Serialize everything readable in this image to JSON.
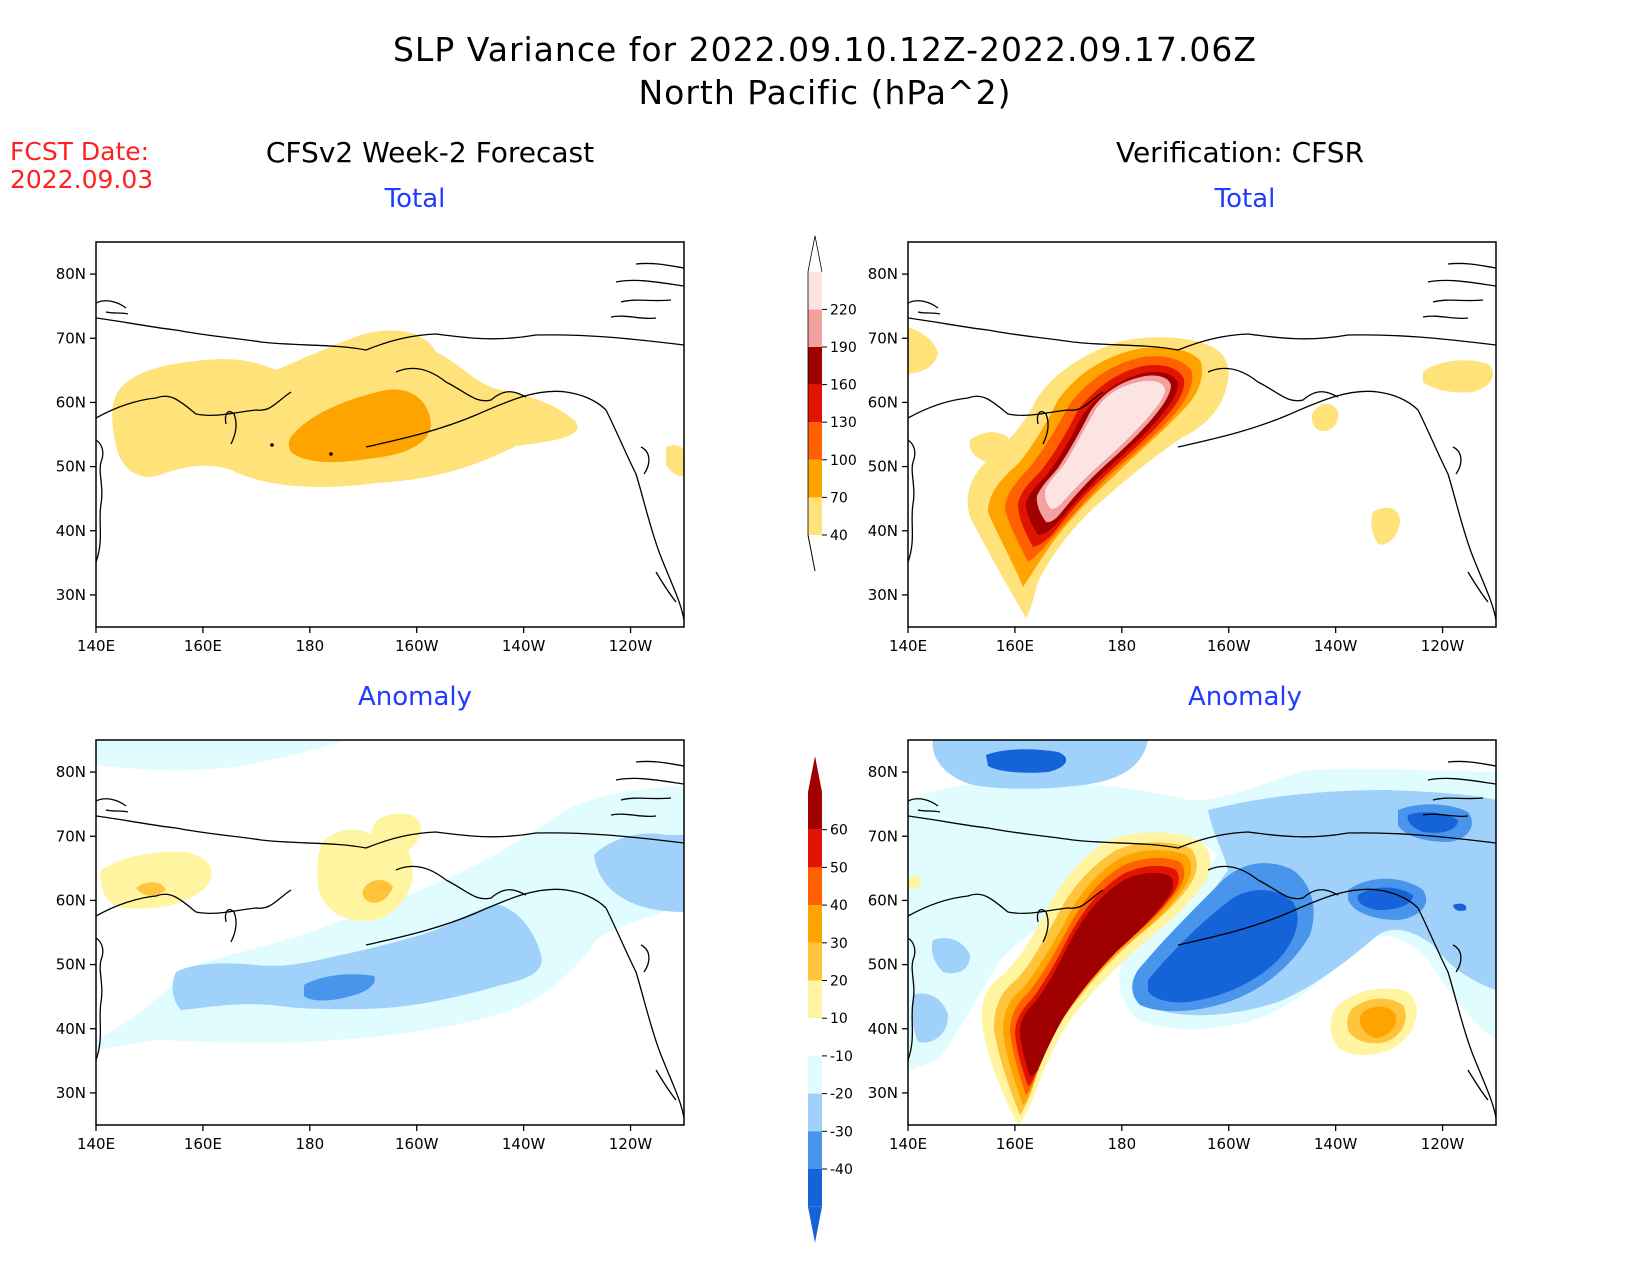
{
  "title": {
    "line1": "SLP Variance for 2022.09.10.12Z-2022.09.17.06Z",
    "line2": "North Pacific (hPa^2)"
  },
  "fcst": {
    "label": "FCST Date:",
    "date": "2022.09.03"
  },
  "columns": {
    "left": "CFSv2 Week-2 Forecast",
    "right": "Verification: CFSR"
  },
  "panel_labels": {
    "total": "Total",
    "anomaly": "Anomaly"
  },
  "axes": {
    "lat_ticks": [
      "80N",
      "70N",
      "60N",
      "50N",
      "40N",
      "30N"
    ],
    "lon_ticks": [
      "140E",
      "160E",
      "180",
      "160W",
      "140W",
      "120W"
    ],
    "lat_values": [
      80,
      70,
      60,
      50,
      40,
      30
    ],
    "lon_values": [
      140,
      160,
      180,
      200,
      220,
      240
    ],
    "lon_range": [
      140,
      250
    ],
    "lat_range": [
      25,
      85
    ]
  },
  "colorbars": {
    "total": {
      "labels": [
        "40",
        "70",
        "100",
        "130",
        "160",
        "190",
        "220"
      ],
      "colors": [
        "#ffe27a",
        "#ffa300",
        "#ff6000",
        "#e01400",
        "#a00000",
        "#f2a0a0",
        "#fde4e4"
      ]
    },
    "anomaly": {
      "labels": [
        "60",
        "50",
        "40",
        "30",
        "20",
        "10",
        "-10",
        "-20",
        "-30",
        "-40"
      ],
      "colors": [
        "#a00000",
        "#e01400",
        "#ff6000",
        "#ffa300",
        "#ffc33c",
        "#fff5a0",
        "#ffffff",
        "#e0fcff",
        "#9fd1fb",
        "#4a95ec",
        "#1463d9"
      ]
    }
  },
  "colors": {
    "total_40": "#ffe27a",
    "total_70": "#ffa300",
    "total_100": "#ff6000",
    "total_130": "#e01400",
    "total_160": "#a00000",
    "total_190": "#f2a0a0",
    "total_220": "#fde4e4",
    "anom_pos10": "#fff5a0",
    "anom_pos20": "#ffc33c",
    "anom_pos30": "#ffa300",
    "anom_pos40": "#ff6000",
    "anom_pos50": "#e01400",
    "anom_pos60": "#a00000",
    "anom_neg10": "#e0fcff",
    "anom_neg20": "#9fd1fb",
    "anom_neg30": "#4a95ec",
    "anom_neg40": "#1463d9",
    "subtitle": "#1f3cff",
    "fcst": "#ff2020"
  }
}
